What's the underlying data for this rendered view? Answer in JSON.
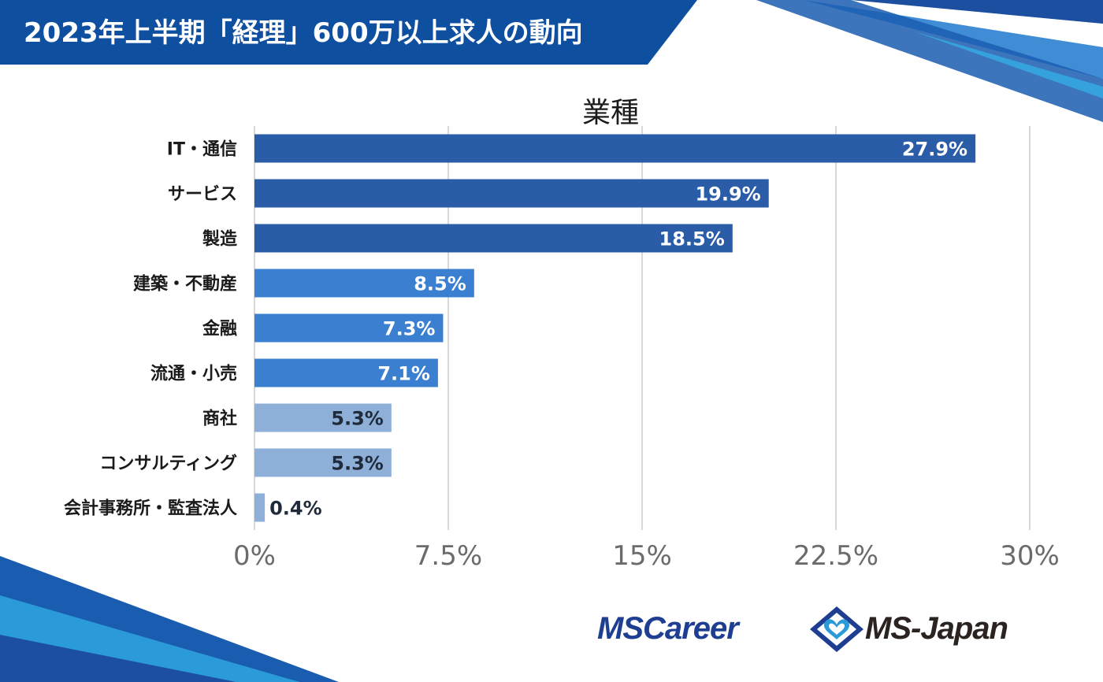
{
  "header": {
    "title": "2023年上半期「経理」600万以上求人の動向"
  },
  "colors": {
    "banner": "#0f4fa0",
    "tier1": "#2a5ca8",
    "tier2": "#3b7fd0",
    "tier3": "#8eafd7",
    "label_text": "#1a1a1a",
    "tick_text": "#6b6b6b",
    "grid": "#bfbfbf",
    "deco_dark": "#1c4fa0",
    "deco_light": "#2b9ad8"
  },
  "chart_data": {
    "type": "bar",
    "orientation": "horizontal",
    "title": "業種",
    "categories": [
      "IT・通信",
      "サービス",
      "製造",
      "建築・不動産",
      "金融",
      "流通・小売",
      "商社",
      "コンサルティング",
      "会計事務所・監査法人"
    ],
    "values": [
      27.9,
      19.9,
      18.5,
      8.5,
      7.3,
      7.1,
      5.3,
      5.3,
      0.4
    ],
    "data_labels": [
      "27.9%",
      "19.9%",
      "18.5%",
      "8.5%",
      "7.3%",
      "7.1%",
      "5.3%",
      "5.3%",
      "0.4%"
    ],
    "bar_tiers": [
      1,
      1,
      1,
      2,
      2,
      2,
      3,
      3,
      3
    ],
    "xlim": [
      0,
      30
    ],
    "xticks": [
      0,
      7.5,
      15,
      22.5,
      30
    ],
    "xtick_labels": [
      "0%",
      "7.5%",
      "15%",
      "22.5%",
      "30%"
    ],
    "grid": true,
    "xlabel": "",
    "ylabel": ""
  },
  "footer": {
    "logo_left": "MSCareer",
    "logo_right": "MS-Japan",
    "logo_mark_icon": "diamond-heart-logo-icon"
  }
}
